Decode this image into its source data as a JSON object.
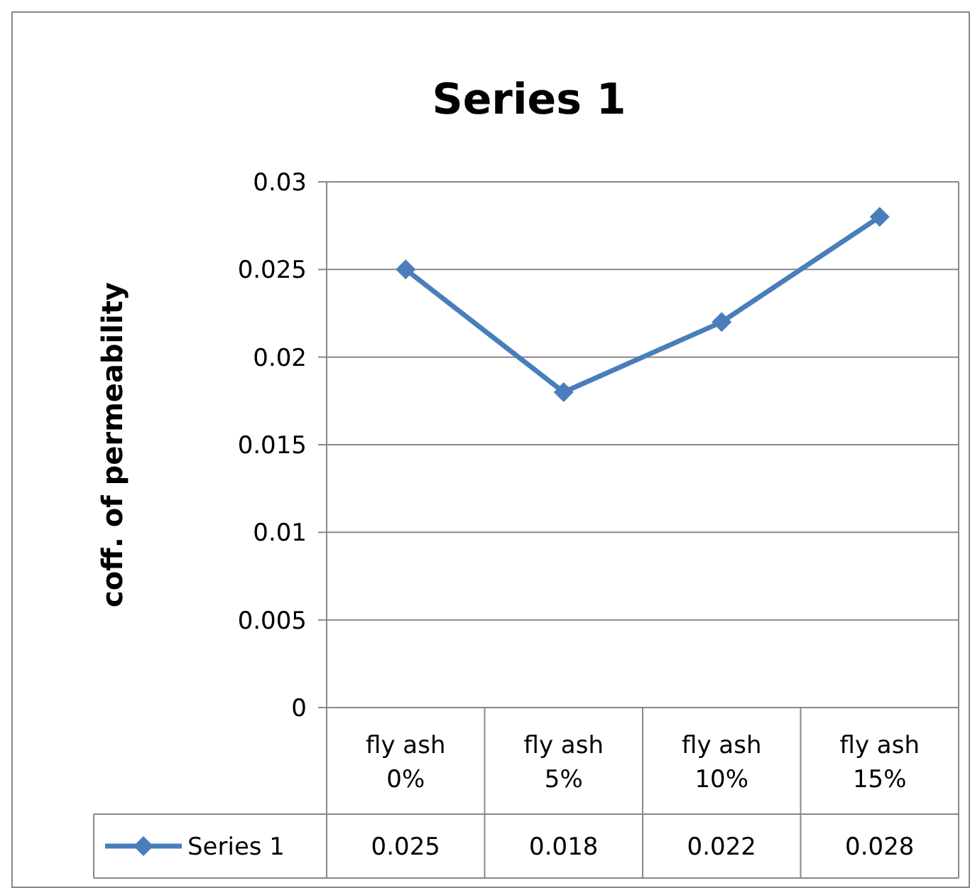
{
  "chart_data": {
    "type": "line",
    "title": "Series 1",
    "ylabel": "coff. of permeability",
    "categories": [
      "fly ash 0%",
      "fly ash 5%",
      "fly ash 10%",
      "fly ash 15%"
    ],
    "series": [
      {
        "name": "Series 1",
        "color": "#4a7ebb",
        "values": [
          0.025,
          0.018,
          0.022,
          0.028
        ]
      }
    ],
    "ylim": [
      0,
      0.03
    ],
    "yticks": [
      0,
      0.005,
      0.01,
      0.015,
      0.02,
      0.025,
      0.03
    ],
    "grid": "y",
    "marker": "diamond",
    "line_style": "solid",
    "legend": "bottom",
    "data_labels": true
  }
}
